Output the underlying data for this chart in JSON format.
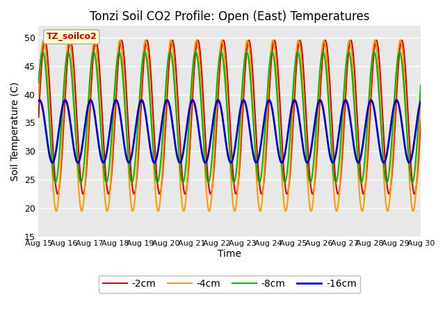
{
  "title": "Tonzi Soil CO2 Profile: Open (East) Temperatures",
  "ylabel": "Soil Temperature (C)",
  "xlabel": "Time",
  "legend_label": "TZ_soilco2",
  "ylim": [
    15,
    52
  ],
  "yticks": [
    15,
    20,
    25,
    30,
    35,
    40,
    45,
    50
  ],
  "series": {
    "-2cm": {
      "color": "#dd0000",
      "lw": 1.5
    },
    "-4cm": {
      "color": "#ff9900",
      "lw": 1.5
    },
    "-8cm": {
      "color": "#00bb00",
      "lw": 1.5
    },
    "-16cm": {
      "color": "#0000cc",
      "lw": 2.0
    }
  },
  "legend_order": [
    "-2cm",
    "-4cm",
    "-8cm",
    "-16cm"
  ],
  "plot_bg_color": "#e8e8e8",
  "grid_color": "#ffffff",
  "start_day": 15,
  "end_day": 30,
  "label_box_color": "#ffffcc",
  "label_box_edge": "#aaaaaa",
  "amp_2": 13.5,
  "mean_2": 36.0,
  "amp_4": 15.0,
  "mean_4": 34.5,
  "amp_8": 11.5,
  "mean_8": 36.0,
  "amp_16": 5.5,
  "mean_16": 33.5,
  "phase_2": 0.0,
  "phase_4": 0.35,
  "phase_8": 0.55,
  "phase_16": 1.3
}
